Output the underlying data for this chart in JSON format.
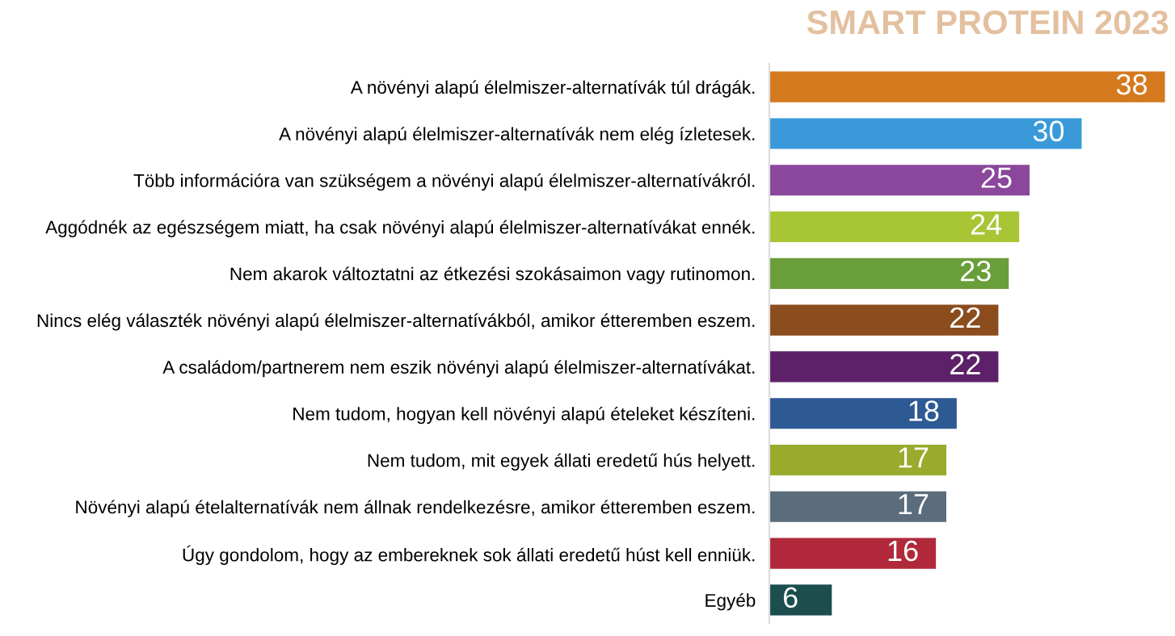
{
  "chart_data": {
    "type": "bar",
    "orientation": "horizontal",
    "title": "SMART PROTEIN 2023",
    "categories": [
      "A növényi alapú élelmiszer-alternatívák túl drágák.",
      "A növényi alapú élelmiszer-alternatívák nem elég ízletesek.",
      "Több információra van szükségem a növényi alapú élelmiszer-alternatívákról.",
      "Aggódnék az egészségem miatt, ha csak növényi alapú élelmiszer-alternatívákat ennék.",
      "Nem akarok változtatni az étkezési szokásaimon vagy rutinomon.",
      "Nincs elég választék növényi alapú élelmiszer-alternatívákból, amikor étteremben eszem.",
      "A családom/partnerem nem eszik növényi alapú élelmiszer-alternatívákat.",
      "Nem tudom, hogyan kell növényi alapú ételeket készíteni.",
      "Nem tudom, mit egyek állati eredetű hús helyett.",
      "Növényi alapú ételalternatívák nem állnak rendelkezésre, amikor étteremben eszem.",
      "Úgy gondolom, hogy az embereknek sok állati eredetű húst kell enniük.",
      "Egyéb"
    ],
    "values": [
      38,
      30,
      25,
      24,
      23,
      22,
      22,
      18,
      17,
      17,
      16,
      6
    ],
    "colors": [
      "#d4791e",
      "#3a9ad9",
      "#8a479b",
      "#a8c536",
      "#6a9e3a",
      "#8b4c1e",
      "#5c2168",
      "#2e5a93",
      "#9aaa2c",
      "#5b6d7c",
      "#b1283a",
      "#1c4e4e"
    ],
    "data_labels": true,
    "grid": false,
    "legend": false
  }
}
